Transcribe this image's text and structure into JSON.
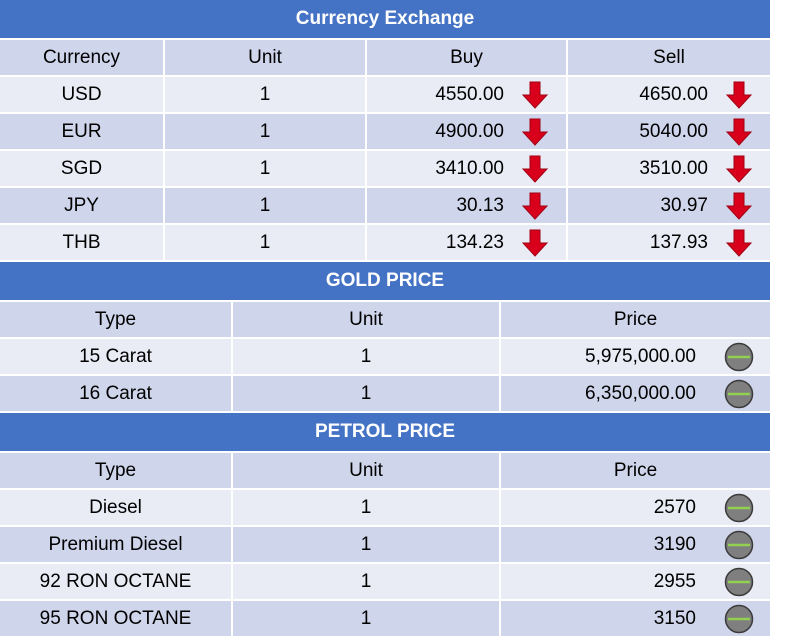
{
  "currency": {
    "title": "Currency Exchange",
    "headers": [
      "Currency",
      "Unit",
      "Buy",
      "Sell"
    ],
    "rows": [
      {
        "code": "USD",
        "unit": "1",
        "buy": "4550.00",
        "sell": "4650.00"
      },
      {
        "code": "EUR",
        "unit": "1",
        "buy": "4900.00",
        "sell": "5040.00"
      },
      {
        "code": "SGD",
        "unit": "1",
        "buy": "3410.00",
        "sell": "3510.00"
      },
      {
        "code": "JPY",
        "unit": "1",
        "buy": "30.13",
        "sell": "30.97"
      },
      {
        "code": "THB",
        "unit": "1",
        "buy": "134.23",
        "sell": "137.93"
      }
    ],
    "trend_icon": "down-arrow-icon"
  },
  "gold": {
    "title": "GOLD PRICE",
    "headers": [
      "Type",
      "Unit",
      "Price"
    ],
    "rows": [
      {
        "type": "15 Carat",
        "unit": "1",
        "price": "5,975,000.00"
      },
      {
        "type": "16 Carat",
        "unit": "1",
        "price": "6,350,000.00"
      }
    ],
    "trend_icon": "no-change-icon"
  },
  "petrol": {
    "title": "PETROL PRICE",
    "headers": [
      "Type",
      "Unit",
      "Price"
    ],
    "rows": [
      {
        "type": "Diesel",
        "unit": "1",
        "price": "2570"
      },
      {
        "type": "Premium Diesel",
        "unit": "1",
        "price": "3190"
      },
      {
        "type": "92 RON OCTANE",
        "unit": "1",
        "price": "2955"
      },
      {
        "type": "95 RON OCTANE",
        "unit": "1",
        "price": "3150"
      }
    ],
    "trend_icon": "no-change-icon"
  },
  "colors": {
    "header_blue": "#4472c4",
    "row_dark": "#cfd5ea",
    "row_light": "#e9ebf5",
    "arrow_red": "#d9001b",
    "neutral_gray": "#7f7f7f",
    "neutral_line": "#92d050"
  }
}
